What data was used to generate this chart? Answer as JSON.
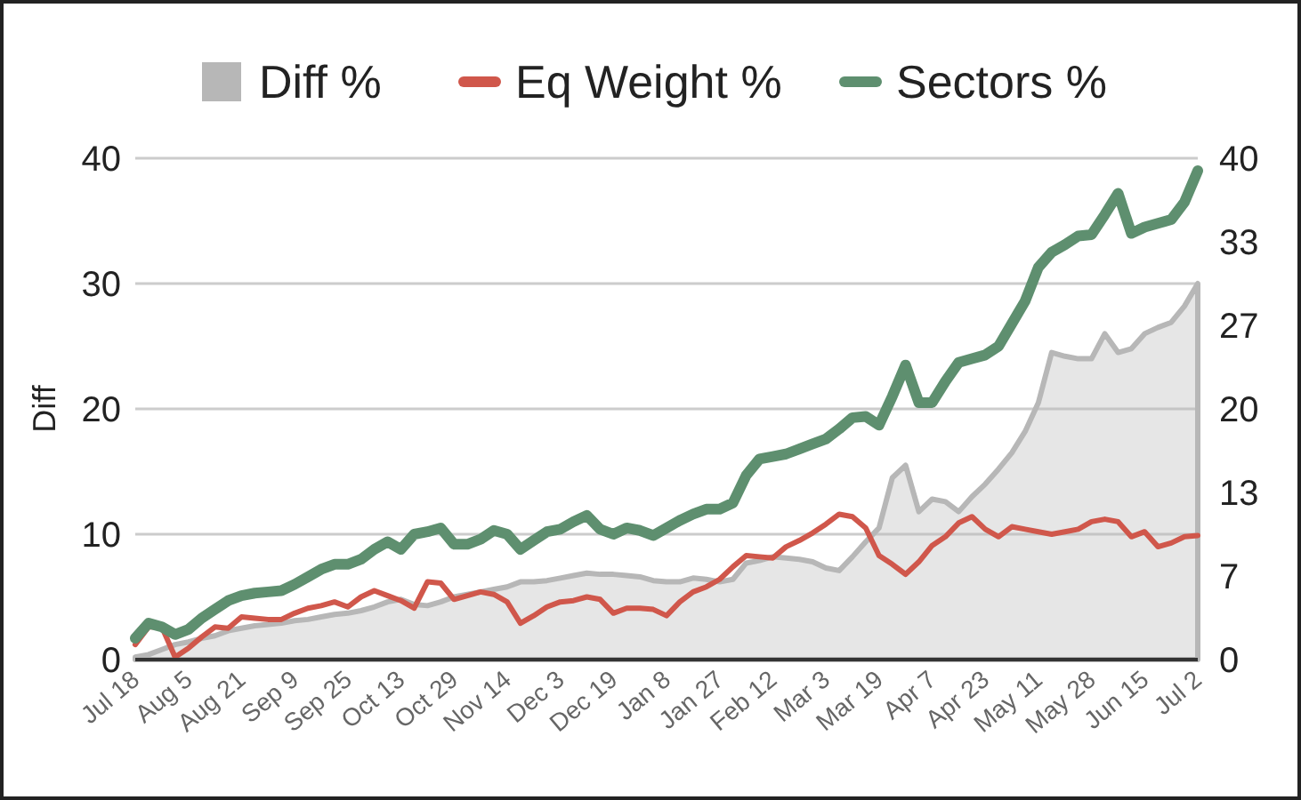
{
  "chart_data": {
    "type": "line",
    "ylabel": "Diff",
    "categories": [
      "Jul 18",
      null,
      null,
      null,
      "Aug 5",
      null,
      null,
      null,
      "Aug 21",
      null,
      null,
      null,
      "Sep 9",
      null,
      null,
      null,
      "Sep 25",
      null,
      null,
      null,
      "Oct 13",
      null,
      null,
      null,
      "Oct 29",
      null,
      null,
      null,
      "Nov 14",
      null,
      null,
      null,
      "Dec 3",
      null,
      null,
      null,
      "Dec 19",
      null,
      null,
      null,
      "Jan 8",
      null,
      null,
      null,
      "Jan 27",
      null,
      null,
      null,
      "Feb 12",
      null,
      null,
      null,
      "Mar 3",
      null,
      null,
      null,
      "Mar 19",
      null,
      null,
      null,
      "Apr 7",
      null,
      null,
      null,
      "Apr 23",
      null,
      null,
      null,
      "May 11",
      null,
      null,
      null,
      "May 28",
      null,
      null,
      null,
      "Jun 15",
      null,
      null,
      null,
      "Jul 2"
    ],
    "series": [
      {
        "name": "Diff %",
        "type": "area",
        "color": "#b7b7b7",
        "values": [
          0.2,
          0.4,
          0.8,
          1.2,
          1.4,
          1.7,
          1.9,
          2.3,
          2.5,
          2.7,
          2.8,
          2.9,
          3.1,
          3.2,
          3.4,
          3.6,
          3.7,
          3.9,
          4.2,
          4.6,
          4.8,
          4.4,
          4.3,
          4.6,
          5.0,
          5.2,
          5.4,
          5.6,
          5.8,
          6.2,
          6.2,
          6.3,
          6.5,
          6.7,
          6.9,
          6.8,
          6.8,
          6.7,
          6.6,
          6.3,
          6.2,
          6.2,
          6.5,
          6.4,
          6.2,
          6.4,
          7.7,
          7.9,
          8.2,
          8.1,
          8.0,
          7.8,
          7.3,
          7.1,
          8.2,
          9.4,
          10.5,
          14.5,
          15.5,
          11.8,
          12.8,
          12.6,
          11.8,
          13.0,
          14.0,
          15.2,
          16.5,
          18.2,
          20.5,
          24.5,
          24.2,
          24.0,
          24.0,
          26.0,
          24.5,
          24.8,
          26.0,
          26.5,
          26.9,
          28.2,
          30.0
        ]
      },
      {
        "name": "Eq Weight %",
        "type": "line",
        "color": "#d0574b",
        "values": [
          1.2,
          2.6,
          2.6,
          0.2,
          0.9,
          1.8,
          2.6,
          2.5,
          3.4,
          3.3,
          3.2,
          3.2,
          3.7,
          4.1,
          4.3,
          4.6,
          4.2,
          5.0,
          5.5,
          5.1,
          4.7,
          4.1,
          6.2,
          6.1,
          4.8,
          5.1,
          5.4,
          5.2,
          4.6,
          2.9,
          3.5,
          4.2,
          4.6,
          4.7,
          5.0,
          4.8,
          3.7,
          4.1,
          4.1,
          4.0,
          3.5,
          4.6,
          5.4,
          5.8,
          6.4,
          7.4,
          8.3,
          8.2,
          8.1,
          9.0,
          9.5,
          10.1,
          10.8,
          11.6,
          11.4,
          10.5,
          8.3,
          7.6,
          6.8,
          7.8,
          9.1,
          9.8,
          10.9,
          11.4,
          10.4,
          9.8,
          10.6,
          10.4,
          10.2,
          10.0,
          10.2,
          10.4,
          11.0,
          11.2,
          11.0,
          9.8,
          10.2,
          9.0,
          9.3,
          9.8,
          9.9
        ]
      },
      {
        "name": "Sectors %",
        "type": "line",
        "color": "#5e8f6f",
        "values": [
          1.7,
          2.9,
          2.6,
          2.0,
          2.4,
          3.3,
          4.0,
          4.7,
          5.1,
          5.3,
          5.4,
          5.5,
          6.0,
          6.6,
          7.2,
          7.6,
          7.6,
          8.0,
          8.8,
          9.4,
          8.8,
          10.0,
          10.2,
          10.5,
          9.2,
          9.2,
          9.6,
          10.3,
          10.0,
          8.8,
          9.5,
          10.2,
          10.4,
          11.0,
          11.5,
          10.4,
          10.0,
          10.5,
          10.3,
          9.9,
          10.5,
          11.1,
          11.6,
          12.0,
          12.0,
          12.5,
          14.7,
          16.0,
          16.2,
          16.4,
          16.8,
          17.2,
          17.6,
          18.4,
          19.3,
          19.4,
          18.7,
          21.0,
          23.5,
          20.5,
          20.5,
          22.2,
          23.7,
          24.0,
          24.3,
          25.0,
          26.8,
          28.6,
          31.3,
          32.5,
          33.1,
          33.8,
          33.9,
          35.5,
          37.2,
          34.0,
          34.5,
          34.8,
          35.1,
          36.5,
          39.0
        ]
      }
    ],
    "ylim": [
      0,
      40
    ],
    "yticks": [
      0,
      10,
      20,
      30,
      40
    ],
    "y2lim": [
      0,
      40
    ],
    "y2ticks": [
      0,
      {
        "value": 6.67,
        "label": "7"
      },
      {
        "value": 13.33,
        "label": "13"
      },
      20,
      {
        "value": 26.67,
        "label": "27"
      },
      {
        "value": 33.33,
        "label": "33"
      },
      40
    ],
    "grid": "y",
    "legend": "top",
    "line_style": "solid",
    "marker": "none"
  }
}
